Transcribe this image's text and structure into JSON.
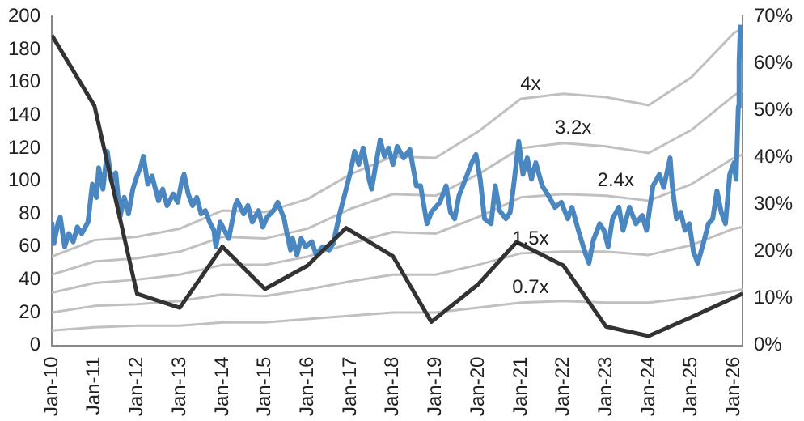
{
  "chart_data": {
    "type": "line",
    "xlim": [
      "2010-01-01",
      "2026-03-15"
    ],
    "xticks": [
      {
        "value": "2010-01",
        "label": "Jan-10"
      },
      {
        "value": "2011-01",
        "label": "Jan-11"
      },
      {
        "value": "2012-01",
        "label": "Jan-12"
      },
      {
        "value": "2013-01",
        "label": "Jan-13"
      },
      {
        "value": "2014-01",
        "label": "Jan-14"
      },
      {
        "value": "2015-01",
        "label": "Jan-15"
      },
      {
        "value": "2016-01",
        "label": "Jan-16"
      },
      {
        "value": "2017-01",
        "label": "Jan-17"
      },
      {
        "value": "2018-01",
        "label": "Jan-18"
      },
      {
        "value": "2019-01",
        "label": "Jan-19"
      },
      {
        "value": "2020-01",
        "label": "Jan-20"
      },
      {
        "value": "2021-01",
        "label": "Jan-21"
      },
      {
        "value": "2022-01",
        "label": "Jan-22"
      },
      {
        "value": "2023-01",
        "label": "Jan-23"
      },
      {
        "value": "2024-01",
        "label": "Jan-24"
      },
      {
        "value": "2025-01",
        "label": "Jan-25"
      },
      {
        "value": "2026-01",
        "label": "Jan-26"
      }
    ],
    "ylim": [
      0,
      200
    ],
    "yticks": [
      0,
      20,
      40,
      60,
      80,
      100,
      120,
      140,
      160,
      180,
      200
    ],
    "y2lim": [
      0,
      70
    ],
    "y2ticks": [
      {
        "value": 0,
        "label": "0%"
      },
      {
        "value": 10,
        "label": "10%"
      },
      {
        "value": 20,
        "label": "20%"
      },
      {
        "value": 30,
        "label": "30%"
      },
      {
        "value": 40,
        "label": "40%"
      },
      {
        "value": 50,
        "label": "50%"
      },
      {
        "value": 60,
        "label": "60%"
      },
      {
        "value": 70,
        "label": "70%"
      }
    ],
    "grid": false,
    "legend": false,
    "marker": "none",
    "line_style": "solid",
    "series": [
      {
        "color": "#c0c0c0",
        "x": [
          "2010-01",
          "2011-01",
          "2012-01",
          "2013-01",
          "2014-01",
          "2015-01",
          "2016-01",
          "2017-01",
          "2018-01",
          "2019-01",
          "2020-01",
          "2021-01",
          "2022-01",
          "2023-01",
          "2024-01",
          "2025-01",
          "2026-01",
          "2026-03-15"
        ],
        "values": [
          9,
          11,
          12,
          12,
          14,
          14,
          16,
          18,
          20,
          20,
          23,
          26,
          27,
          26,
          26,
          29,
          33,
          34
        ]
      },
      {
        "color": "#c0c0c0",
        "x": [
          "2010-01",
          "2011-01",
          "2012-01",
          "2013-01",
          "2014-01",
          "2015-01",
          "2016-01",
          "2017-01",
          "2018-01",
          "2019-01",
          "2020-01",
          "2021-01",
          "2022-01",
          "2023-01",
          "2024-01",
          "2025-01",
          "2026-01",
          "2026-03-15"
        ],
        "values": [
          20,
          24,
          25,
          27,
          31,
          30,
          34,
          39,
          43,
          43,
          49,
          56,
          57,
          57,
          55,
          61,
          71,
          72
        ]
      },
      {
        "color": "#c0c0c0",
        "x": [
          "2010-01",
          "2011-01",
          "2012-01",
          "2013-01",
          "2014-01",
          "2015-01",
          "2016-01",
          "2017-01",
          "2018-01",
          "2019-01",
          "2020-01",
          "2021-01",
          "2022-01",
          "2023-01",
          "2024-01",
          "2025-01",
          "2026-01",
          "2026-03-15"
        ],
        "values": [
          32,
          38,
          40,
          43,
          49,
          49,
          54,
          62,
          69,
          68,
          78,
          90,
          92,
          91,
          88,
          98,
          114,
          116
        ]
      },
      {
        "color": "#c0c0c0",
        "x": [
          "2010-01",
          "2011-01",
          "2012-01",
          "2013-01",
          "2014-01",
          "2015-01",
          "2016-01",
          "2017-01",
          "2018-01",
          "2019-01",
          "2020-01",
          "2021-01",
          "2022-01",
          "2023-01",
          "2024-01",
          "2025-01",
          "2026-01",
          "2026-03-15"
        ],
        "values": [
          43,
          51,
          53,
          57,
          66,
          65,
          71,
          83,
          92,
          91,
          104,
          120,
          123,
          121,
          117,
          131,
          152,
          155
        ]
      },
      {
        "color": "#c0c0c0",
        "x": [
          "2010-01",
          "2011-01",
          "2012-01",
          "2013-01",
          "2014-01",
          "2015-01",
          "2016-01",
          "2017-01",
          "2018-01",
          "2019-01",
          "2020-01",
          "2021-01",
          "2022-01",
          "2023-01",
          "2024-01",
          "2025-01",
          "2026-01",
          "2026-03-15"
        ],
        "values": [
          54,
          64,
          66,
          71,
          82,
          81,
          89,
          104,
          115,
          114,
          130,
          150,
          153,
          151,
          146,
          163,
          190,
          193
        ]
      },
      {
        "color": "#4a86c0",
        "x": [
          "2010-01-01",
          "2010-01-19",
          "2010-02-25",
          "2010-03-15",
          "2010-04-21",
          "2010-05-27",
          "2010-07-03",
          "2010-08-08",
          "2010-09-14",
          "2010-11-07",
          "2010-12-14",
          "2011-01-19",
          "2011-02-07",
          "2011-03-15",
          "2011-04-21",
          "2011-05-27",
          "2011-07-03",
          "2011-08-08",
          "2011-09-14",
          "2011-10-20",
          "2011-11-26",
          "2012-01-01",
          "2012-02-07",
          "2012-02-25",
          "2012-04-02",
          "2012-05-09",
          "2012-07-03",
          "2012-08-08",
          "2012-09-14",
          "2012-11-07",
          "2012-12-14",
          "2013-01-19",
          "2013-02-07",
          "2013-03-15",
          "2013-04-21",
          "2013-05-27",
          "2013-07-03",
          "2013-08-08",
          "2013-09-14",
          "2013-10-20",
          "2013-11-07",
          "2013-12-14",
          "2014-01-19",
          "2014-02-25",
          "2014-04-21",
          "2014-05-09",
          "2014-07-03",
          "2014-08-08",
          "2014-09-14",
          "2014-11-07",
          "2014-12-14",
          "2015-01-19",
          "2015-03-15",
          "2015-04-21",
          "2015-06-14",
          "2015-07-03",
          "2015-08-08",
          "2015-08-26",
          "2015-10-02",
          "2015-11-07",
          "2015-12-14",
          "2016-02-07",
          "2016-03-15",
          "2016-05-09",
          "2016-07-03",
          "2016-08-08",
          "2016-10-02",
          "2016-11-26",
          "2017-01-01",
          "2017-02-07",
          "2017-03-15",
          "2017-04-21",
          "2017-06-14",
          "2017-07-03",
          "2017-08-08",
          "2017-09-14",
          "2017-10-20",
          "2017-11-26",
          "2018-01-01",
          "2018-02-07",
          "2018-04-02",
          "2018-05-27",
          "2018-07-21",
          "2018-08-26",
          "2018-10-20",
          "2018-11-26",
          "2019-02-07",
          "2019-04-02",
          "2019-05-09",
          "2019-06-14",
          "2019-07-21",
          "2019-09-14",
          "2019-11-07",
          "2019-12-14",
          "2020-01-19",
          "2020-02-25",
          "2020-04-21",
          "2020-05-27",
          "2020-07-03",
          "2020-08-26",
          "2020-10-02",
          "2020-11-07",
          "2020-12-14",
          "2021-01-19",
          "2021-02-25",
          "2021-04-02",
          "2021-05-09",
          "2021-07-03",
          "2021-08-26",
          "2021-10-20",
          "2021-12-14",
          "2022-02-07",
          "2022-03-15",
          "2022-05-09",
          "2022-07-03",
          "2022-08-08",
          "2022-09-14",
          "2022-11-07",
          "2022-12-14",
          "2023-01-19",
          "2023-02-25",
          "2023-04-21",
          "2023-05-27",
          "2023-07-21",
          "2023-09-14",
          "2023-11-07",
          "2023-12-14",
          "2024-02-07",
          "2024-04-02",
          "2024-05-09",
          "2024-07-03",
          "2024-07-21",
          "2024-08-26",
          "2024-10-02",
          "2024-11-07",
          "2024-12-14",
          "2025-01-19",
          "2025-02-25",
          "2025-04-21",
          "2025-05-27",
          "2025-07-03",
          "2025-08-08",
          "2025-09-14",
          "2025-10-20",
          "2025-11-26",
          "2026-01-01",
          "2026-01-19",
          "2026-02-07",
          "2026-02-14",
          "2026-02-25"
        ],
        "values": [
          75,
          62,
          75,
          78,
          60,
          68,
          63,
          72,
          68,
          75,
          98,
          90,
          108,
          95,
          118,
          100,
          105,
          78,
          90,
          80,
          95,
          103,
          110,
          115,
          98,
          103,
          88,
          95,
          85,
          92,
          87,
          100,
          104,
          92,
          85,
          90,
          80,
          82,
          75,
          70,
          60,
          75,
          70,
          65,
          85,
          88,
          80,
          85,
          75,
          82,
          72,
          78,
          82,
          87,
          77,
          70,
          58,
          65,
          55,
          65,
          60,
          63,
          55,
          60,
          58,
          62,
          80,
          95,
          105,
          118,
          110,
          120,
          100,
          95,
          110,
          125,
          115,
          120,
          110,
          121,
          114,
          119,
          97,
          97,
          74,
          81,
          87,
          97,
          81,
          77,
          91,
          101,
          111,
          116,
          101,
          77,
          74,
          97,
          82,
          77,
          81,
          101,
          124,
          104,
          114,
          101,
          111,
          97,
          91,
          84,
          87,
          77,
          84,
          70,
          57,
          50,
          64,
          74,
          70,
          60,
          77,
          84,
          70,
          84,
          74,
          79,
          70,
          97,
          104,
          96,
          114,
          97,
          77,
          81,
          70,
          74,
          57,
          50,
          64,
          74,
          77,
          94,
          81,
          74,
          104,
          111,
          101,
          145,
          172,
          195
        ]
      },
      {
        "color": "#333333",
        "axis": "y2",
        "x": [
          "2010-01",
          "2011-01",
          "2012-01",
          "2013-01",
          "2014-01",
          "2015-01",
          "2016-01",
          "2016-11-26",
          "2018-01",
          "2018-11-26",
          "2020-01",
          "2020-11-26",
          "2022-01",
          "2023-01",
          "2024-01",
          "2025-01",
          "2026-03-15"
        ],
        "values": [
          66,
          51,
          11,
          8,
          21,
          12,
          17,
          25,
          19,
          5,
          13,
          22,
          17,
          4,
          2,
          6,
          11
        ]
      }
    ],
    "annotations": [
      {
        "text": "4x",
        "x": "2021-01",
        "y": 150
      },
      {
        "text": "3.2x",
        "x": "2022-01",
        "y": 123
      },
      {
        "text": "2.4x",
        "x": "2023-01",
        "y": 91
      },
      {
        "text": "1.5x",
        "x": "2021-01",
        "y": 56
      },
      {
        "text": "0.7x",
        "x": "2021-01",
        "y": 26
      }
    ]
  }
}
